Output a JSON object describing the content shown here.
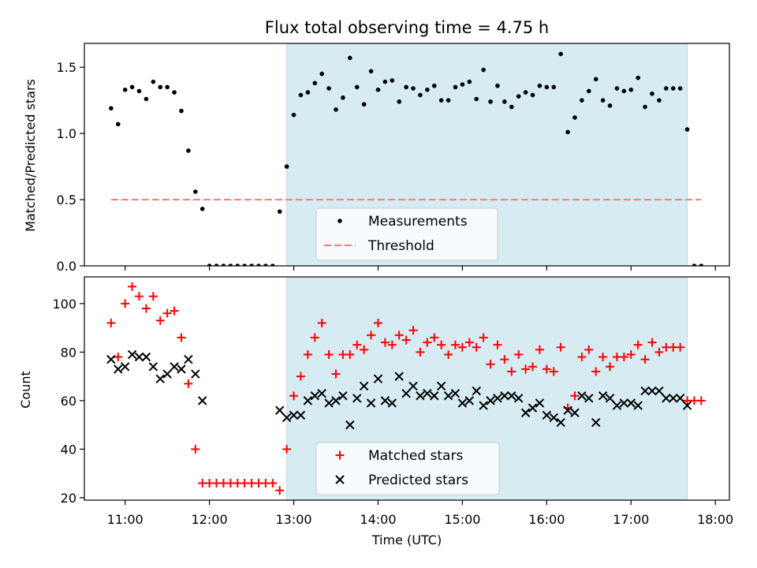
{
  "title": "Flux total observing time = 4.75 h",
  "colors": {
    "shade": "#add8e6",
    "measurement": "#000000",
    "threshold": "#ff7f7f",
    "matched": "#ff0000",
    "predicted": "#000000"
  },
  "chart_data": [
    {
      "type": "scatter",
      "ylabel": "Matched/Predicted stars",
      "ylim": [
        0,
        1.68
      ],
      "yticks": [
        "0.0",
        "0.5",
        "1.0",
        "1.5"
      ],
      "ytick_values": [
        0,
        0.5,
        1.0,
        1.5
      ],
      "xlim": [
        "10:31",
        "18:10"
      ],
      "observing_window": [
        "12:55",
        "17:40"
      ],
      "legend_position": "lower center",
      "legend": [
        "Measurements",
        "Threshold"
      ],
      "threshold": {
        "name": "Threshold",
        "y": 0.5,
        "x": [
          "10:50",
          "17:50"
        ]
      },
      "series": [
        {
          "name": "Measurements",
          "points": [
            [
              "10:50",
              1.19
            ],
            [
              "10:55",
              1.07
            ],
            [
              "11:00",
              1.33
            ],
            [
              "11:05",
              1.35
            ],
            [
              "11:10",
              1.32
            ],
            [
              "11:15",
              1.26
            ],
            [
              "11:20",
              1.39
            ],
            [
              "11:25",
              1.35
            ],
            [
              "11:30",
              1.35
            ],
            [
              "11:35",
              1.31
            ],
            [
              "11:40",
              1.17
            ],
            [
              "11:45",
              0.87
            ],
            [
              "11:50",
              0.56
            ],
            [
              "11:55",
              0.43
            ],
            [
              "12:00",
              0
            ],
            [
              "12:05",
              0
            ],
            [
              "12:10",
              0
            ],
            [
              "12:15",
              0
            ],
            [
              "12:20",
              0
            ],
            [
              "12:25",
              0
            ],
            [
              "12:30",
              0
            ],
            [
              "12:35",
              0
            ],
            [
              "12:40",
              0
            ],
            [
              "12:45",
              0
            ],
            [
              "12:50",
              0.41
            ],
            [
              "12:55",
              0.75
            ],
            [
              "13:00",
              1.14
            ],
            [
              "13:05",
              1.29
            ],
            [
              "13:10",
              1.31
            ],
            [
              "13:15",
              1.38
            ],
            [
              "13:20",
              1.45
            ],
            [
              "13:25",
              1.34
            ],
            [
              "13:30",
              1.18
            ],
            [
              "13:35",
              1.27
            ],
            [
              "13:40",
              1.57
            ],
            [
              "13:45",
              1.35
            ],
            [
              "13:50",
              1.22
            ],
            [
              "13:55",
              1.47
            ],
            [
              "14:00",
              1.33
            ],
            [
              "14:05",
              1.39
            ],
            [
              "14:10",
              1.4
            ],
            [
              "14:15",
              1.24
            ],
            [
              "14:20",
              1.35
            ],
            [
              "14:25",
              1.34
            ],
            [
              "14:30",
              1.29
            ],
            [
              "14:35",
              1.33
            ],
            [
              "14:40",
              1.36
            ],
            [
              "14:45",
              1.25
            ],
            [
              "14:50",
              1.25
            ],
            [
              "14:55",
              1.35
            ],
            [
              "15:00",
              1.37
            ],
            [
              "15:05",
              1.39
            ],
            [
              "15:10",
              1.26
            ],
            [
              "15:15",
              1.48
            ],
            [
              "15:20",
              1.24
            ],
            [
              "15:25",
              1.36
            ],
            [
              "15:30",
              1.24
            ],
            [
              "15:35",
              1.2
            ],
            [
              "15:40",
              1.28
            ],
            [
              "15:45",
              1.31
            ],
            [
              "15:50",
              1.29
            ],
            [
              "15:55",
              1.36
            ],
            [
              "16:00",
              1.35
            ],
            [
              "16:05",
              1.35
            ],
            [
              "16:10",
              1.6
            ],
            [
              "16:15",
              1.01
            ],
            [
              "16:20",
              1.12
            ],
            [
              "16:25",
              1.25
            ],
            [
              "16:30",
              1.32
            ],
            [
              "16:35",
              1.41
            ],
            [
              "16:40",
              1.25
            ],
            [
              "16:45",
              1.21
            ],
            [
              "16:50",
              1.34
            ],
            [
              "16:55",
              1.32
            ],
            [
              "17:00",
              1.33
            ],
            [
              "17:05",
              1.42
            ],
            [
              "17:10",
              1.2
            ],
            [
              "17:15",
              1.3
            ],
            [
              "17:20",
              1.25
            ],
            [
              "17:25",
              1.34
            ],
            [
              "17:30",
              1.34
            ],
            [
              "17:35",
              1.34
            ],
            [
              "17:40",
              1.03
            ],
            [
              "17:45",
              0
            ],
            [
              "17:50",
              0
            ]
          ]
        }
      ]
    },
    {
      "type": "scatter",
      "xlabel": "Time (UTC)",
      "ylabel": "Count",
      "ylim": [
        19,
        111
      ],
      "yticks": [
        "20",
        "40",
        "60",
        "80",
        "100"
      ],
      "ytick_values": [
        20,
        40,
        60,
        80,
        100
      ],
      "xticks": [
        "11:00",
        "12:00",
        "13:00",
        "14:00",
        "15:00",
        "16:00",
        "17:00",
        "18:00"
      ],
      "xlim": [
        "10:31",
        "18:10"
      ],
      "observing_window": [
        "12:55",
        "17:40"
      ],
      "legend_position": "lower center",
      "legend": [
        "Matched stars",
        "Predicted stars"
      ],
      "series": [
        {
          "name": "Matched stars",
          "marker": "plus",
          "points": [
            [
              "10:50",
              92
            ],
            [
              "10:55",
              78
            ],
            [
              "11:00",
              100
            ],
            [
              "11:05",
              107
            ],
            [
              "11:10",
              103
            ],
            [
              "11:15",
              98
            ],
            [
              "11:20",
              103
            ],
            [
              "11:25",
              93
            ],
            [
              "11:30",
              96
            ],
            [
              "11:35",
              97
            ],
            [
              "11:40",
              86
            ],
            [
              "11:45",
              67
            ],
            [
              "11:50",
              40
            ],
            [
              "11:55",
              26
            ],
            [
              "12:00",
              26
            ],
            [
              "12:05",
              26
            ],
            [
              "12:10",
              26
            ],
            [
              "12:15",
              26
            ],
            [
              "12:20",
              26
            ],
            [
              "12:25",
              26
            ],
            [
              "12:30",
              26
            ],
            [
              "12:35",
              26
            ],
            [
              "12:40",
              26
            ],
            [
              "12:45",
              26
            ],
            [
              "12:50",
              23
            ],
            [
              "12:55",
              40
            ],
            [
              "13:00",
              62
            ],
            [
              "13:05",
              70
            ],
            [
              "13:10",
              79
            ],
            [
              "13:15",
              86
            ],
            [
              "13:20",
              92
            ],
            [
              "13:25",
              79
            ],
            [
              "13:30",
              71
            ],
            [
              "13:35",
              79
            ],
            [
              "13:40",
              79
            ],
            [
              "13:45",
              83
            ],
            [
              "13:50",
              81
            ],
            [
              "13:55",
              87
            ],
            [
              "14:00",
              92
            ],
            [
              "14:05",
              84
            ],
            [
              "14:10",
              83
            ],
            [
              "14:15",
              87
            ],
            [
              "14:20",
              85
            ],
            [
              "14:25",
              89
            ],
            [
              "14:30",
              80
            ],
            [
              "14:35",
              84
            ],
            [
              "14:40",
              86
            ],
            [
              "14:45",
              83
            ],
            [
              "14:50",
              79
            ],
            [
              "14:55",
              83
            ],
            [
              "15:00",
              82
            ],
            [
              "15:05",
              84
            ],
            [
              "15:10",
              82
            ],
            [
              "15:15",
              86
            ],
            [
              "15:20",
              75
            ],
            [
              "15:25",
              83
            ],
            [
              "15:30",
              77
            ],
            [
              "15:35",
              72
            ],
            [
              "15:40",
              79
            ],
            [
              "15:45",
              73
            ],
            [
              "15:50",
              74
            ],
            [
              "15:55",
              81
            ],
            [
              "16:00",
              73
            ],
            [
              "16:05",
              72
            ],
            [
              "16:10",
              82
            ],
            [
              "16:15",
              57
            ],
            [
              "16:20",
              62
            ],
            [
              "16:25",
              78
            ],
            [
              "16:30",
              81
            ],
            [
              "16:35",
              72
            ],
            [
              "16:40",
              78
            ],
            [
              "16:45",
              74
            ],
            [
              "16:50",
              78
            ],
            [
              "16:55",
              78
            ],
            [
              "17:00",
              79
            ],
            [
              "17:05",
              83
            ],
            [
              "17:10",
              77
            ],
            [
              "17:15",
              84
            ],
            [
              "17:20",
              80
            ],
            [
              "17:25",
              82
            ],
            [
              "17:30",
              82
            ],
            [
              "17:35",
              82
            ],
            [
              "17:40",
              60
            ],
            [
              "17:45",
              60
            ],
            [
              "17:50",
              60
            ]
          ]
        },
        {
          "name": "Predicted stars",
          "marker": "x",
          "points": [
            [
              "10:50",
              77
            ],
            [
              "10:55",
              73
            ],
            [
              "11:00",
              74
            ],
            [
              "11:05",
              79
            ],
            [
              "11:10",
              78
            ],
            [
              "11:15",
              78
            ],
            [
              "11:20",
              74
            ],
            [
              "11:25",
              69
            ],
            [
              "11:30",
              71
            ],
            [
              "11:35",
              74
            ],
            [
              "11:40",
              73
            ],
            [
              "11:45",
              77
            ],
            [
              "11:50",
              71
            ],
            [
              "11:55",
              60
            ],
            [
              "12:50",
              56
            ],
            [
              "12:55",
              53
            ],
            [
              "13:00",
              54
            ],
            [
              "13:05",
              54
            ],
            [
              "13:10",
              60
            ],
            [
              "13:15",
              62
            ],
            [
              "13:20",
              63
            ],
            [
              "13:25",
              59
            ],
            [
              "13:30",
              60
            ],
            [
              "13:35",
              62
            ],
            [
              "13:40",
              50
            ],
            [
              "13:45",
              61
            ],
            [
              "13:50",
              66
            ],
            [
              "13:55",
              59
            ],
            [
              "14:00",
              69
            ],
            [
              "14:05",
              60
            ],
            [
              "14:10",
              59
            ],
            [
              "14:15",
              70
            ],
            [
              "14:20",
              63
            ],
            [
              "14:25",
              66
            ],
            [
              "14:30",
              62
            ],
            [
              "14:35",
              63
            ],
            [
              "14:40",
              62
            ],
            [
              "14:45",
              66
            ],
            [
              "14:50",
              62
            ],
            [
              "14:55",
              63
            ],
            [
              "15:00",
              59
            ],
            [
              "15:05",
              60
            ],
            [
              "15:10",
              64
            ],
            [
              "15:15",
              58
            ],
            [
              "15:20",
              60
            ],
            [
              "15:25",
              61
            ],
            [
              "15:30",
              62
            ],
            [
              "15:35",
              62
            ],
            [
              "15:40",
              61
            ],
            [
              "15:45",
              55
            ],
            [
              "15:50",
              57
            ],
            [
              "15:55",
              59
            ],
            [
              "16:00",
              54
            ],
            [
              "16:05",
              53
            ],
            [
              "16:10",
              51
            ],
            [
              "16:15",
              56
            ],
            [
              "16:20",
              55
            ],
            [
              "16:25",
              62
            ],
            [
              "16:30",
              61
            ],
            [
              "16:35",
              51
            ],
            [
              "16:40",
              62
            ],
            [
              "16:45",
              61
            ],
            [
              "16:50",
              58
            ],
            [
              "16:55",
              59
            ],
            [
              "17:00",
              59
            ],
            [
              "17:05",
              58
            ],
            [
              "17:10",
              64
            ],
            [
              "17:15",
              64
            ],
            [
              "17:20",
              64
            ],
            [
              "17:25",
              61
            ],
            [
              "17:30",
              61
            ],
            [
              "17:35",
              61
            ],
            [
              "17:40",
              58
            ]
          ]
        }
      ]
    }
  ]
}
